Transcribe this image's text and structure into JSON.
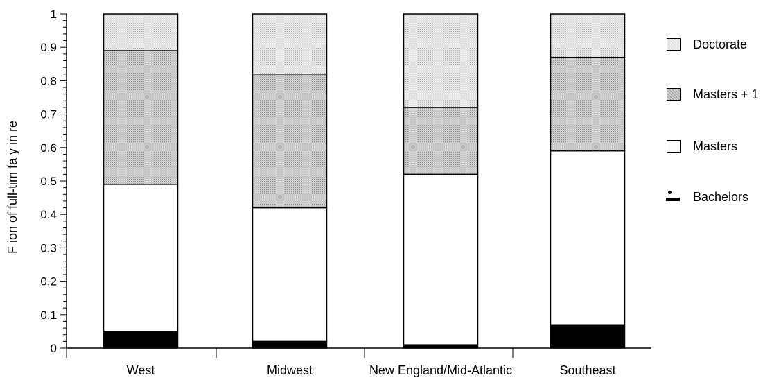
{
  "chart_data": {
    "type": "bar",
    "stacked": true,
    "ylabel": "F ion of full-tim fa y in re",
    "ylim": [
      0,
      1
    ],
    "yticks": [
      "0",
      "0.1",
      "0.2",
      "0.3",
      "0.4",
      "0.5",
      "0.6",
      "0.7",
      "0.8",
      "0.9",
      "1"
    ],
    "categories": [
      "West",
      "Midwest",
      "New England/Mid-Atlantic",
      "Southeast"
    ],
    "series": [
      {
        "name": "Bachelors",
        "color": "#000000",
        "pattern": "solid",
        "values": [
          0.05,
          0.02,
          0.01,
          0.07
        ]
      },
      {
        "name": "Masters",
        "color": "#ffffff",
        "pattern": "none",
        "values": [
          0.44,
          0.4,
          0.51,
          0.52
        ]
      },
      {
        "name": "Masters + 1",
        "color": "#c8c8c8",
        "pattern": "dotted",
        "values": [
          0.4,
          0.4,
          0.2,
          0.28
        ]
      },
      {
        "name": "Doctorate",
        "color": "#e6e6e6",
        "pattern": "dotted",
        "values": [
          0.11,
          0.18,
          0.28,
          0.13
        ]
      }
    ],
    "legend_position": "right",
    "legend_order": [
      "Doctorate",
      "Masters + 1",
      "Masters",
      "Bachelors"
    ],
    "grid": false
  }
}
